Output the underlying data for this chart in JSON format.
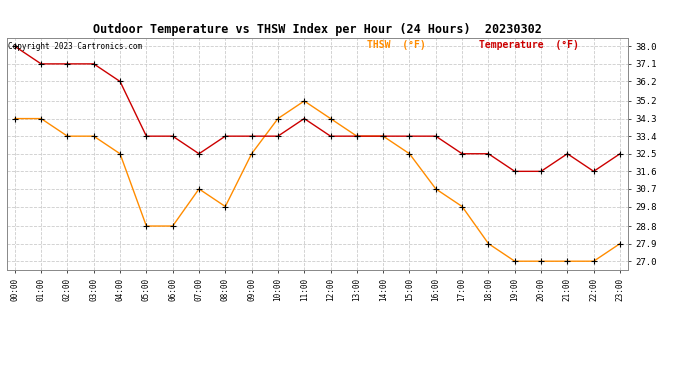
{
  "title": "Outdoor Temperature vs THSW Index per Hour (24 Hours)  20230302",
  "copyright": "Copyright 2023 Cartronics.com",
  "legend_thsw": "THSW  (°F)",
  "legend_temp": "Temperature  (°F)",
  "hours": [
    0,
    1,
    2,
    3,
    4,
    5,
    6,
    7,
    8,
    9,
    10,
    11,
    12,
    13,
    14,
    15,
    16,
    17,
    18,
    19,
    20,
    21,
    22,
    23
  ],
  "thsw": [
    34.3,
    34.3,
    33.4,
    33.4,
    32.5,
    28.8,
    28.8,
    30.7,
    29.8,
    32.5,
    34.3,
    35.2,
    34.3,
    33.4,
    33.4,
    32.5,
    30.7,
    29.8,
    27.9,
    27.0,
    27.0,
    27.0,
    27.0,
    27.9
  ],
  "temperature": [
    38.0,
    37.1,
    37.1,
    37.1,
    36.2,
    33.4,
    33.4,
    32.5,
    33.4,
    33.4,
    33.4,
    34.3,
    33.4,
    33.4,
    33.4,
    33.4,
    33.4,
    32.5,
    32.5,
    31.6,
    31.6,
    32.5,
    31.6,
    32.5
  ],
  "thsw_color": "#FF8C00",
  "temp_color": "#CC0000",
  "ylim_min": 26.55,
  "ylim_max": 38.45,
  "yticks": [
    27.0,
    27.9,
    28.8,
    29.8,
    30.7,
    31.6,
    32.5,
    33.4,
    34.3,
    35.2,
    36.2,
    37.1,
    38.0
  ],
  "bg_color": "#ffffff",
  "grid_color": "#cccccc"
}
